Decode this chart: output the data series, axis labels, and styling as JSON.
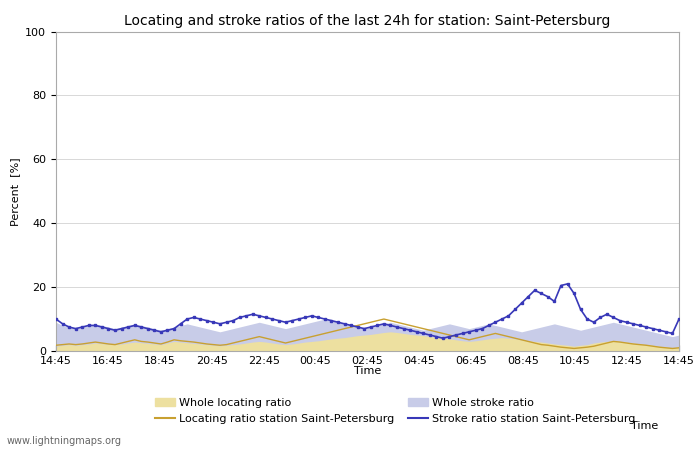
{
  "title": "Locating and stroke ratios of the last 24h for station: Saint-Petersburg",
  "ylabel": "Percent  [%]",
  "xlabel": "Time",
  "watermark": "www.lightningmaps.org",
  "ylim": [
    0,
    100
  ],
  "yticks": [
    0,
    20,
    40,
    60,
    80,
    100
  ],
  "x_labels": [
    "14:45",
    "16:45",
    "18:45",
    "20:45",
    "22:45",
    "00:45",
    "02:45",
    "04:45",
    "06:45",
    "08:45",
    "10:45",
    "12:45",
    "14:45"
  ],
  "whole_locating": [
    1.5,
    1.8,
    2.0,
    1.8,
    2.0,
    2.2,
    2.5,
    2.3,
    2.1,
    2.0,
    2.2,
    2.5,
    2.8,
    2.6,
    2.4,
    2.2,
    2.0,
    2.5,
    3.0,
    2.8,
    2.6,
    2.4,
    2.2,
    2.0,
    1.8,
    1.6,
    1.8,
    2.0,
    2.2,
    2.5,
    2.8,
    3.0,
    2.8,
    2.5,
    2.2,
    2.0,
    2.2,
    2.5,
    2.8,
    3.0,
    3.2,
    3.5,
    3.8,
    4.0,
    4.2,
    4.5,
    4.8,
    5.0,
    5.2,
    5.5,
    5.8,
    6.0,
    5.8,
    5.5,
    5.2,
    5.0,
    4.8,
    4.5,
    4.2,
    4.0,
    3.8,
    3.5,
    3.2,
    3.0,
    3.2,
    3.5,
    3.8,
    4.0,
    4.2,
    4.0,
    3.8,
    3.5,
    3.2,
    3.0,
    2.8,
    2.5,
    2.2,
    2.0,
    1.8,
    1.5,
    1.8,
    2.0,
    2.5,
    2.8,
    3.0,
    3.2,
    3.0,
    2.8,
    2.5,
    2.2,
    2.0,
    1.8,
    1.5,
    1.2,
    1.0,
    1.2
  ],
  "locating_sp": [
    1.8,
    2.0,
    2.2,
    2.0,
    2.2,
    2.5,
    2.8,
    2.5,
    2.2,
    2.0,
    2.5,
    3.0,
    3.5,
    3.0,
    2.8,
    2.5,
    2.2,
    2.8,
    3.5,
    3.2,
    3.0,
    2.8,
    2.5,
    2.2,
    2.0,
    1.8,
    2.0,
    2.5,
    3.0,
    3.5,
    4.0,
    4.5,
    4.0,
    3.5,
    3.0,
    2.5,
    3.0,
    3.5,
    4.0,
    4.5,
    5.0,
    5.5,
    6.0,
    6.5,
    7.0,
    7.5,
    8.0,
    8.5,
    9.0,
    9.5,
    10.0,
    9.5,
    9.0,
    8.5,
    8.0,
    7.5,
    7.0,
    6.5,
    6.0,
    5.5,
    5.0,
    4.5,
    4.0,
    3.5,
    4.0,
    4.5,
    5.0,
    5.5,
    5.0,
    4.5,
    4.0,
    3.5,
    3.0,
    2.5,
    2.0,
    1.8,
    1.5,
    1.2,
    1.0,
    0.8,
    1.0,
    1.2,
    1.5,
    2.0,
    2.5,
    3.0,
    2.8,
    2.5,
    2.2,
    2.0,
    1.8,
    1.5,
    1.2,
    1.0,
    0.8,
    1.0
  ],
  "whole_stroke": [
    9.0,
    8.0,
    7.5,
    7.0,
    7.5,
    8.0,
    8.5,
    8.0,
    7.5,
    7.0,
    7.5,
    8.0,
    8.5,
    8.0,
    7.5,
    7.0,
    6.5,
    7.0,
    7.5,
    8.0,
    8.5,
    8.0,
    7.5,
    7.0,
    6.5,
    6.0,
    6.5,
    7.0,
    7.5,
    8.0,
    8.5,
    9.0,
    8.5,
    8.0,
    7.5,
    7.0,
    7.5,
    8.0,
    8.5,
    9.0,
    9.5,
    10.0,
    9.5,
    9.0,
    8.5,
    8.0,
    7.5,
    7.0,
    7.5,
    8.0,
    8.5,
    9.0,
    8.5,
    8.0,
    7.5,
    7.0,
    6.5,
    7.0,
    7.5,
    8.0,
    8.5,
    8.0,
    7.5,
    7.0,
    7.5,
    8.0,
    8.5,
    8.0,
    7.5,
    7.0,
    6.5,
    6.0,
    6.5,
    7.0,
    7.5,
    8.0,
    8.5,
    8.0,
    7.5,
    7.0,
    6.5,
    7.0,
    7.5,
    8.0,
    8.5,
    9.0,
    8.5,
    8.0,
    7.5,
    7.0,
    6.5,
    6.0,
    5.5,
    5.0,
    4.5,
    5.0
  ],
  "stroke_sp": [
    10.0,
    8.5,
    7.5,
    7.0,
    7.5,
    8.0,
    8.0,
    7.5,
    7.0,
    6.5,
    7.0,
    7.5,
    8.0,
    7.5,
    7.0,
    6.5,
    6.0,
    6.5,
    7.0,
    8.5,
    10.0,
    10.5,
    10.0,
    9.5,
    9.0,
    8.5,
    9.0,
    9.5,
    10.5,
    11.0,
    11.5,
    11.0,
    10.5,
    10.0,
    9.5,
    9.0,
    9.5,
    10.0,
    10.5,
    11.0,
    10.5,
    10.0,
    9.5,
    9.0,
    8.5,
    8.0,
    7.5,
    7.0,
    7.5,
    8.0,
    8.5,
    8.0,
    7.5,
    7.0,
    6.5,
    6.0,
    5.5,
    5.0,
    4.5,
    4.0,
    4.5,
    5.0,
    5.5,
    6.0,
    6.5,
    7.0,
    8.0,
    9.0,
    10.0,
    11.0,
    13.0,
    15.0,
    17.0,
    19.0,
    18.0,
    17.0,
    15.5,
    20.5,
    21.0,
    18.0,
    13.0,
    10.0,
    9.0,
    10.5,
    11.5,
    10.5,
    9.5,
    9.0,
    8.5,
    8.0,
    7.5,
    7.0,
    6.5,
    6.0,
    5.5,
    10.0
  ],
  "fill_locating_color": "#ede0a0",
  "fill_stroke_color": "#c8cce8",
  "line_locating_color": "#c8a030",
  "line_stroke_color": "#3838b8",
  "background_color": "#ffffff",
  "grid_color": "#d8d8d8",
  "title_fontsize": 10,
  "axis_fontsize": 8,
  "tick_fontsize": 8,
  "legend_fontsize": 8
}
